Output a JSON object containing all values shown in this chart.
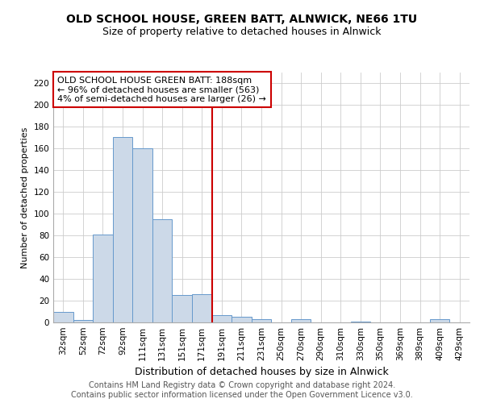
{
  "title1": "OLD SCHOOL HOUSE, GREEN BATT, ALNWICK, NE66 1TU",
  "title2": "Size of property relative to detached houses in Alnwick",
  "xlabel": "Distribution of detached houses by size in Alnwick",
  "ylabel": "Number of detached properties",
  "categories": [
    "32sqm",
    "52sqm",
    "72sqm",
    "92sqm",
    "111sqm",
    "131sqm",
    "151sqm",
    "171sqm",
    "191sqm",
    "211sqm",
    "231sqm",
    "250sqm",
    "270sqm",
    "290sqm",
    "310sqm",
    "330sqm",
    "350sqm",
    "369sqm",
    "389sqm",
    "409sqm",
    "429sqm"
  ],
  "values": [
    10,
    2,
    81,
    171,
    160,
    95,
    25,
    26,
    7,
    5,
    3,
    0,
    3,
    0,
    0,
    1,
    0,
    0,
    0,
    3,
    0
  ],
  "bar_color": "#ccd9e8",
  "bar_edge_color": "#6699cc",
  "vline_color": "#cc0000",
  "vline_pos": 8,
  "annotation_text": "OLD SCHOOL HOUSE GREEN BATT: 188sqm\n← 96% of detached houses are smaller (563)\n4% of semi-detached houses are larger (26) →",
  "annotation_box_color": "#ffffff",
  "annotation_box_edge_color": "#cc0000",
  "ylim": [
    0,
    230
  ],
  "yticks": [
    0,
    20,
    40,
    60,
    80,
    100,
    120,
    140,
    160,
    180,
    200,
    220
  ],
  "footer_text": "Contains HM Land Registry data © Crown copyright and database right 2024.\nContains public sector information licensed under the Open Government Licence v3.0.",
  "background_color": "#ffffff",
  "grid_color": "#cccccc",
  "title1_fontsize": 10,
  "title2_fontsize": 9,
  "xlabel_fontsize": 9,
  "ylabel_fontsize": 8,
  "tick_fontsize": 7.5,
  "annotation_fontsize": 8,
  "footer_fontsize": 7
}
